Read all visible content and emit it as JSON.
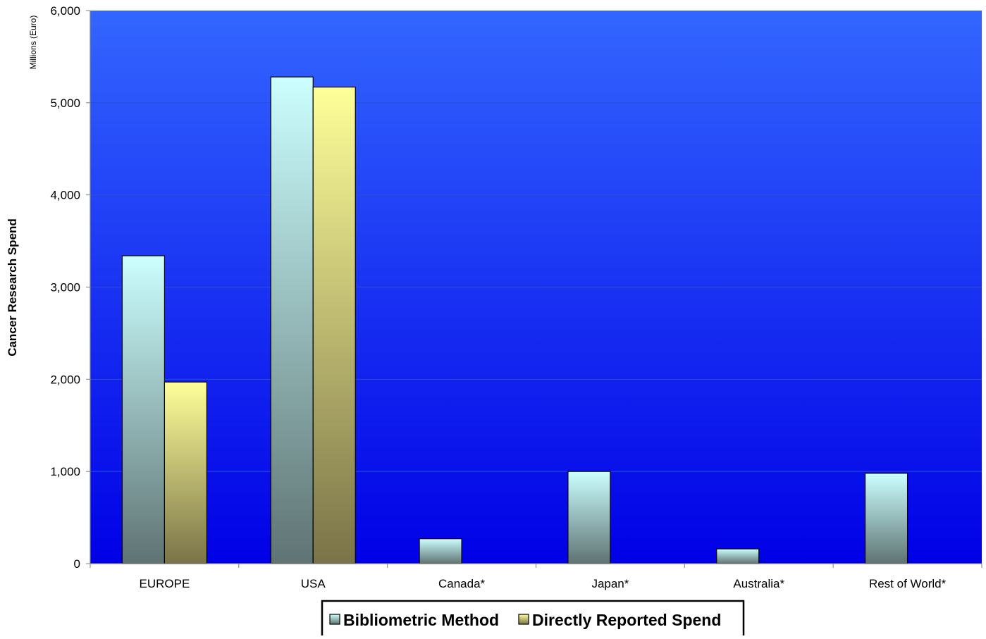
{
  "chart_data": {
    "type": "bar",
    "title": "",
    "xlabel": "",
    "ylabel": "Cancer Research Spend",
    "unit_label": "Millions (Euro)",
    "categories": [
      "EUROPE",
      "USA",
      "Canada*",
      "Japan*",
      "Australia*",
      "Rest of World*"
    ],
    "series": [
      {
        "name": "Bibliometric Method",
        "values": [
          3340,
          5280,
          270,
          1000,
          160,
          980
        ],
        "color_top": "#ccffff",
        "color_bottom": "#5f7373"
      },
      {
        "name": "Directly Reported Spend",
        "values": [
          1970,
          5170,
          null,
          null,
          null,
          null
        ],
        "color_top": "#ffff99",
        "color_bottom": "#7a7348"
      }
    ],
    "ylim": [
      0,
      6000
    ],
    "yticks": [
      0,
      1000,
      2000,
      3000,
      4000,
      5000,
      6000
    ],
    "ytick_labels": [
      "0",
      "1,000",
      "2,000",
      "3,000",
      "4,000",
      "5,000",
      "6,000"
    ],
    "grid": true,
    "legend_position": "bottom-center",
    "plot_background_top": "#3366ff",
    "plot_background_bottom": "#0000e6"
  }
}
